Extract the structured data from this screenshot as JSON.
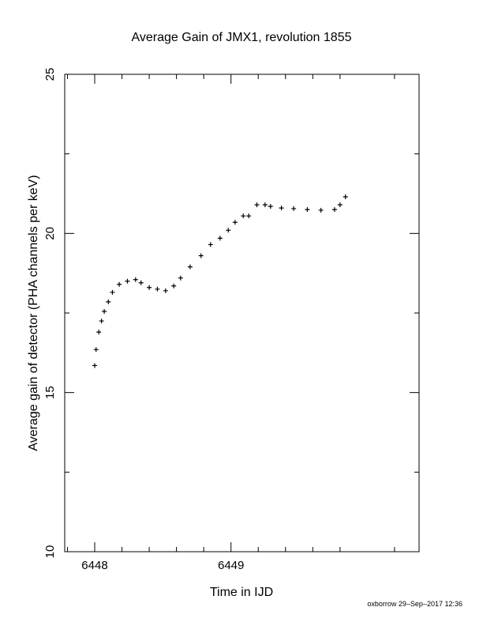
{
  "chart_data": {
    "type": "scatter",
    "marker": "plus",
    "marker_color": "#000000",
    "title": "Average Gain of JMX1, revolution 1855",
    "xlabel": "Time in IJD",
    "ylabel": "Average gain of detector (PHA channels per keV)",
    "xlim": [
      6447.78,
      6450.38
    ],
    "ylim": [
      10,
      25
    ],
    "x_ticks": [
      6448,
      6449
    ],
    "x_tick_labels": [
      "6448",
      "6449"
    ],
    "y_ticks": [
      10,
      15,
      20,
      25
    ],
    "y_tick_labels": [
      "10",
      "15",
      "20",
      "25"
    ],
    "grid": false,
    "legend": "none",
    "series": [
      {
        "x": [
          6448.0,
          6448.01,
          6448.03,
          6448.05,
          6448.07,
          6448.1,
          6448.13,
          6448.18,
          6448.24,
          6448.3,
          6448.34,
          6448.4,
          6448.46,
          6448.52,
          6448.58,
          6448.63,
          6448.7,
          6448.78,
          6448.85,
          6448.92,
          6448.98,
          6449.03,
          6449.09,
          6449.13,
          6449.19,
          6449.25,
          6449.29,
          6449.37,
          6449.46,
          6449.56,
          6449.66,
          6449.76,
          6449.8,
          6449.84
        ],
        "y": [
          15.85,
          16.35,
          16.9,
          17.25,
          17.55,
          17.85,
          18.15,
          18.4,
          18.5,
          18.55,
          18.45,
          18.3,
          18.25,
          18.2,
          18.35,
          18.6,
          18.95,
          19.3,
          19.65,
          19.85,
          20.1,
          20.35,
          20.55,
          20.55,
          20.9,
          20.9,
          20.85,
          20.8,
          20.78,
          20.75,
          20.73,
          20.75,
          20.9,
          21.15
        ]
      }
    ]
  },
  "footer_text": "oxborrow 29–Sep–2017 12:36"
}
